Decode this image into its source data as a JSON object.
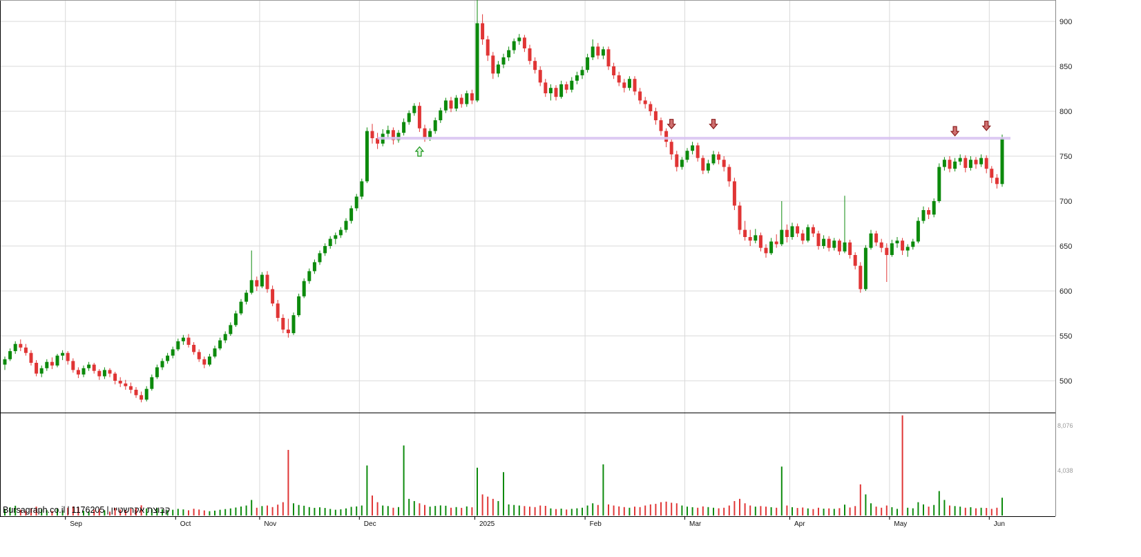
{
  "footer": {
    "source": "Bursagraph.co.il",
    "instrument_id": "1176205",
    "instrument_name": "קבוצת אקרשטיין",
    "separator": "|"
  },
  "chart_data": {
    "type": "candlestick_with_volume",
    "title": "",
    "price_axis": {
      "side": "right",
      "ticks": [
        900,
        850,
        800,
        750,
        700,
        650,
        600,
        550,
        500
      ],
      "min": 465,
      "max": 924
    },
    "volume_axis": {
      "ticks": [
        {
          "label": "8,076",
          "value": 8076
        },
        {
          "label": "4,038",
          "value": 4038
        }
      ]
    },
    "months": [
      {
        "label": "Sep",
        "index": 12
      },
      {
        "label": "Oct",
        "index": 33
      },
      {
        "label": "Nov",
        "index": 49
      },
      {
        "label": "Dec",
        "index": 68
      },
      {
        "label": "2025",
        "index": 90
      },
      {
        "label": "Feb",
        "index": 111
      },
      {
        "label": "Mar",
        "index": 130
      },
      {
        "label": "Apr",
        "index": 150
      },
      {
        "label": "May",
        "index": 169
      },
      {
        "label": "Jun",
        "index": 188
      }
    ],
    "colors": {
      "up": "#0c8a0c",
      "down": "#e03535",
      "grid": "#d9d9d9",
      "support_line": "#d9c2f2",
      "frame": "#000000",
      "price_label": "#222222",
      "volume_label": "#999999",
      "up_arrow_fill": "#dff5df",
      "up_arrow_stroke": "#169416",
      "down_arrow_fill": "#cf7070",
      "down_arrow_stroke": "#8b1d1d"
    },
    "support_line": {
      "price": 770,
      "start_index": 71,
      "end_index": 190
    },
    "annotations": [
      {
        "type": "up-arrow",
        "index": 79,
        "price": 755
      },
      {
        "type": "down-arrow",
        "index": 127,
        "price": 786
      },
      {
        "type": "down-arrow",
        "index": 135,
        "price": 786
      },
      {
        "type": "down-arrow",
        "index": 181,
        "price": 778
      },
      {
        "type": "down-arrow",
        "index": 187,
        "price": 784
      }
    ],
    "candles_format": [
      "open",
      "high",
      "low",
      "close",
      "volume"
    ],
    "candles": [
      [
        518,
        527,
        512,
        524,
        600
      ],
      [
        524,
        536,
        522,
        533,
        740
      ],
      [
        533,
        544,
        530,
        541,
        880
      ],
      [
        541,
        546,
        533,
        537,
        520
      ],
      [
        537,
        541,
        528,
        531,
        430
      ],
      [
        531,
        534,
        517,
        520,
        640
      ],
      [
        520,
        523,
        505,
        508,
        800
      ],
      [
        508,
        517,
        504,
        514,
        560
      ],
      [
        514,
        524,
        511,
        521,
        480
      ],
      [
        521,
        526,
        513,
        517,
        400
      ],
      [
        517,
        530,
        515,
        528,
        610
      ],
      [
        528,
        534,
        523,
        531,
        460
      ],
      [
        531,
        533,
        518,
        522,
        700
      ],
      [
        522,
        525,
        509,
        512,
        820
      ],
      [
        512,
        515,
        503,
        507,
        760
      ],
      [
        507,
        517,
        504,
        514,
        430
      ],
      [
        514,
        521,
        511,
        518,
        380
      ],
      [
        518,
        520,
        508,
        511,
        520
      ],
      [
        511,
        513,
        501,
        505,
        600
      ],
      [
        505,
        515,
        502,
        512,
        470
      ],
      [
        512,
        514,
        504,
        508,
        350
      ],
      [
        508,
        510,
        496,
        500,
        680
      ],
      [
        500,
        504,
        493,
        497,
        540
      ],
      [
        497,
        501,
        490,
        494,
        460
      ],
      [
        494,
        498,
        486,
        490,
        630
      ],
      [
        490,
        493,
        481,
        484,
        710
      ],
      [
        484,
        488,
        476,
        479,
        920
      ],
      [
        479,
        494,
        477,
        491,
        640
      ],
      [
        491,
        507,
        489,
        504,
        580
      ],
      [
        504,
        518,
        502,
        515,
        690
      ],
      [
        515,
        525,
        512,
        522,
        560
      ],
      [
        522,
        531,
        519,
        528,
        480
      ],
      [
        528,
        538,
        525,
        535,
        520
      ],
      [
        535,
        547,
        533,
        544,
        600
      ],
      [
        544,
        551,
        540,
        548,
        550
      ],
      [
        548,
        552,
        537,
        540,
        470
      ],
      [
        540,
        543,
        529,
        532,
        610
      ],
      [
        532,
        535,
        521,
        524,
        540
      ],
      [
        524,
        527,
        514,
        518,
        460
      ],
      [
        518,
        530,
        516,
        527,
        390
      ],
      [
        527,
        539,
        525,
        536,
        440
      ],
      [
        536,
        548,
        534,
        545,
        520
      ],
      [
        545,
        555,
        542,
        552,
        580
      ],
      [
        552,
        565,
        550,
        562,
        640
      ],
      [
        562,
        578,
        560,
        575,
        720
      ],
      [
        575,
        591,
        573,
        588,
        810
      ],
      [
        588,
        601,
        585,
        598,
        900
      ],
      [
        598,
        645,
        596,
        612,
        1400
      ],
      [
        612,
        616,
        600,
        605,
        700
      ],
      [
        605,
        621,
        603,
        618,
        850
      ],
      [
        618,
        622,
        598,
        602,
        900
      ],
      [
        602,
        606,
        583,
        586,
        760
      ],
      [
        586,
        590,
        566,
        570,
        980
      ],
      [
        570,
        574,
        553,
        557,
        1200
      ],
      [
        557,
        569,
        548,
        553,
        5900
      ],
      [
        553,
        576,
        551,
        573,
        1100
      ],
      [
        573,
        597,
        571,
        594,
        950
      ],
      [
        594,
        614,
        592,
        611,
        880
      ],
      [
        611,
        625,
        608,
        622,
        760
      ],
      [
        622,
        635,
        619,
        632,
        690
      ],
      [
        632,
        645,
        629,
        642,
        740
      ],
      [
        642,
        653,
        639,
        650,
        680
      ],
      [
        650,
        661,
        647,
        658,
        590
      ],
      [
        658,
        665,
        652,
        662,
        520
      ],
      [
        662,
        671,
        659,
        668,
        560
      ],
      [
        668,
        681,
        665,
        678,
        640
      ],
      [
        678,
        695,
        675,
        692,
        780
      ],
      [
        692,
        708,
        689,
        705,
        820
      ],
      [
        705,
        725,
        702,
        722,
        900
      ],
      [
        722,
        782,
        720,
        778,
        4500
      ],
      [
        778,
        786,
        764,
        770,
        1800
      ],
      [
        770,
        776,
        758,
        764,
        1200
      ],
      [
        764,
        780,
        761,
        775,
        900
      ],
      [
        775,
        784,
        770,
        779,
        850
      ],
      [
        779,
        782,
        763,
        768,
        700
      ],
      [
        768,
        779,
        765,
        776,
        760
      ],
      [
        776,
        792,
        773,
        788,
        6300
      ],
      [
        788,
        801,
        785,
        798,
        1500
      ],
      [
        798,
        809,
        795,
        806,
        1300
      ],
      [
        806,
        810,
        777,
        781,
        1100
      ],
      [
        781,
        785,
        766,
        770,
        950
      ],
      [
        770,
        781,
        767,
        778,
        800
      ],
      [
        778,
        793,
        775,
        790,
        860
      ],
      [
        790,
        804,
        787,
        801,
        910
      ],
      [
        801,
        815,
        798,
        812,
        880
      ],
      [
        812,
        816,
        799,
        803,
        700
      ],
      [
        803,
        818,
        800,
        815,
        760
      ],
      [
        815,
        819,
        804,
        808,
        690
      ],
      [
        808,
        823,
        805,
        820,
        820
      ],
      [
        820,
        824,
        808,
        812,
        740
      ],
      [
        812,
        926,
        810,
        898,
        4300
      ],
      [
        898,
        908,
        874,
        880,
        1900
      ],
      [
        880,
        884,
        856,
        862,
        1700
      ],
      [
        862,
        866,
        836,
        842,
        1500
      ],
      [
        842,
        856,
        838,
        852,
        1300
      ],
      [
        852,
        864,
        848,
        860,
        3900
      ],
      [
        860,
        872,
        856,
        868,
        1000
      ],
      [
        868,
        881,
        864,
        878,
        950
      ],
      [
        878,
        886,
        874,
        882,
        900
      ],
      [
        882,
        885,
        866,
        870,
        850
      ],
      [
        870,
        874,
        852,
        856,
        800
      ],
      [
        856,
        860,
        842,
        846,
        760
      ],
      [
        846,
        850,
        828,
        832,
        900
      ],
      [
        832,
        836,
        816,
        820,
        870
      ],
      [
        820,
        830,
        812,
        826,
        640
      ],
      [
        826,
        829,
        812,
        816,
        580
      ],
      [
        816,
        834,
        814,
        830,
        620
      ],
      [
        830,
        833,
        820,
        824,
        540
      ],
      [
        824,
        838,
        821,
        834,
        600
      ],
      [
        834,
        844,
        830,
        840,
        650
      ],
      [
        840,
        850,
        836,
        846,
        700
      ],
      [
        846,
        864,
        843,
        860,
        900
      ],
      [
        860,
        880,
        857,
        872,
        1100
      ],
      [
        872,
        876,
        858,
        862,
        950
      ],
      [
        862,
        872,
        858,
        869,
        4600
      ],
      [
        869,
        872,
        846,
        850,
        1000
      ],
      [
        850,
        854,
        836,
        840,
        900
      ],
      [
        840,
        844,
        828,
        832,
        820
      ],
      [
        832,
        836,
        821,
        826,
        760
      ],
      [
        826,
        839,
        823,
        836,
        700
      ],
      [
        836,
        839,
        818,
        822,
        800
      ],
      [
        822,
        826,
        808,
        812,
        760
      ],
      [
        812,
        816,
        803,
        808,
        900
      ],
      [
        808,
        811,
        795,
        800,
        1000
      ],
      [
        800,
        804,
        785,
        790,
        1050
      ],
      [
        790,
        793,
        773,
        778,
        1200
      ],
      [
        778,
        781,
        760,
        766,
        1250
      ],
      [
        766,
        769,
        746,
        752,
        1150
      ],
      [
        752,
        756,
        733,
        738,
        1100
      ],
      [
        738,
        749,
        735,
        746,
        900
      ],
      [
        746,
        759,
        743,
        756,
        800
      ],
      [
        756,
        766,
        752,
        762,
        750
      ],
      [
        762,
        765,
        744,
        748,
        700
      ],
      [
        748,
        751,
        730,
        734,
        820
      ],
      [
        734,
        746,
        731,
        742,
        760
      ],
      [
        742,
        756,
        740,
        752,
        700
      ],
      [
        752,
        755,
        741,
        746,
        650
      ],
      [
        746,
        750,
        733,
        738,
        700
      ],
      [
        738,
        741,
        716,
        722,
        900
      ],
      [
        722,
        726,
        690,
        695,
        1300
      ],
      [
        695,
        699,
        663,
        668,
        1500
      ],
      [
        668,
        678,
        656,
        660,
        1100
      ],
      [
        660,
        668,
        650,
        656,
        900
      ],
      [
        656,
        669,
        653,
        662,
        800
      ],
      [
        662,
        665,
        644,
        648,
        850
      ],
      [
        648,
        652,
        637,
        642,
        800
      ],
      [
        642,
        659,
        640,
        655,
        750
      ],
      [
        655,
        663,
        648,
        652,
        700
      ],
      [
        652,
        700,
        650,
        668,
        4400
      ],
      [
        668,
        674,
        654,
        660,
        900
      ],
      [
        660,
        676,
        657,
        672,
        750
      ],
      [
        672,
        675,
        660,
        664,
        680
      ],
      [
        664,
        668,
        652,
        656,
        720
      ],
      [
        656,
        674,
        654,
        671,
        640
      ],
      [
        671,
        674,
        660,
        664,
        580
      ],
      [
        664,
        667,
        646,
        650,
        700
      ],
      [
        650,
        662,
        647,
        658,
        620
      ],
      [
        658,
        661,
        644,
        648,
        640
      ],
      [
        648,
        659,
        645,
        656,
        600
      ],
      [
        656,
        658,
        640,
        644,
        660
      ],
      [
        644,
        706,
        642,
        654,
        980
      ],
      [
        654,
        657,
        636,
        640,
        720
      ],
      [
        640,
        643,
        624,
        628,
        850
      ],
      [
        628,
        632,
        598,
        602,
        2800
      ],
      [
        602,
        651,
        600,
        648,
        1900
      ],
      [
        648,
        668,
        646,
        664,
        1100
      ],
      [
        664,
        667,
        650,
        654,
        800
      ],
      [
        654,
        658,
        643,
        648,
        700
      ],
      [
        648,
        653,
        610,
        640,
        900
      ],
      [
        640,
        657,
        638,
        653,
        750
      ],
      [
        653,
        660,
        648,
        656,
        600
      ],
      [
        656,
        659,
        640,
        645,
        9000
      ],
      [
        645,
        652,
        638,
        649,
        700
      ],
      [
        649,
        658,
        646,
        655,
        650
      ],
      [
        655,
        682,
        653,
        678,
        1200
      ],
      [
        678,
        694,
        675,
        690,
        1000
      ],
      [
        690,
        693,
        680,
        685,
        800
      ],
      [
        685,
        703,
        682,
        700,
        950
      ],
      [
        700,
        742,
        698,
        738,
        2200
      ],
      [
        738,
        749,
        734,
        746,
        1400
      ],
      [
        746,
        750,
        732,
        736,
        900
      ],
      [
        736,
        748,
        733,
        744,
        850
      ],
      [
        744,
        752,
        740,
        748,
        800
      ],
      [
        748,
        751,
        732,
        737,
        700
      ],
      [
        737,
        750,
        734,
        746,
        750
      ],
      [
        746,
        749,
        736,
        741,
        650
      ],
      [
        741,
        752,
        738,
        748,
        700
      ],
      [
        748,
        751,
        731,
        736,
        680
      ],
      [
        736,
        739,
        720,
        726,
        600
      ],
      [
        726,
        730,
        714,
        719,
        700
      ],
      [
        719,
        774,
        716,
        770,
        1600
      ]
    ]
  }
}
